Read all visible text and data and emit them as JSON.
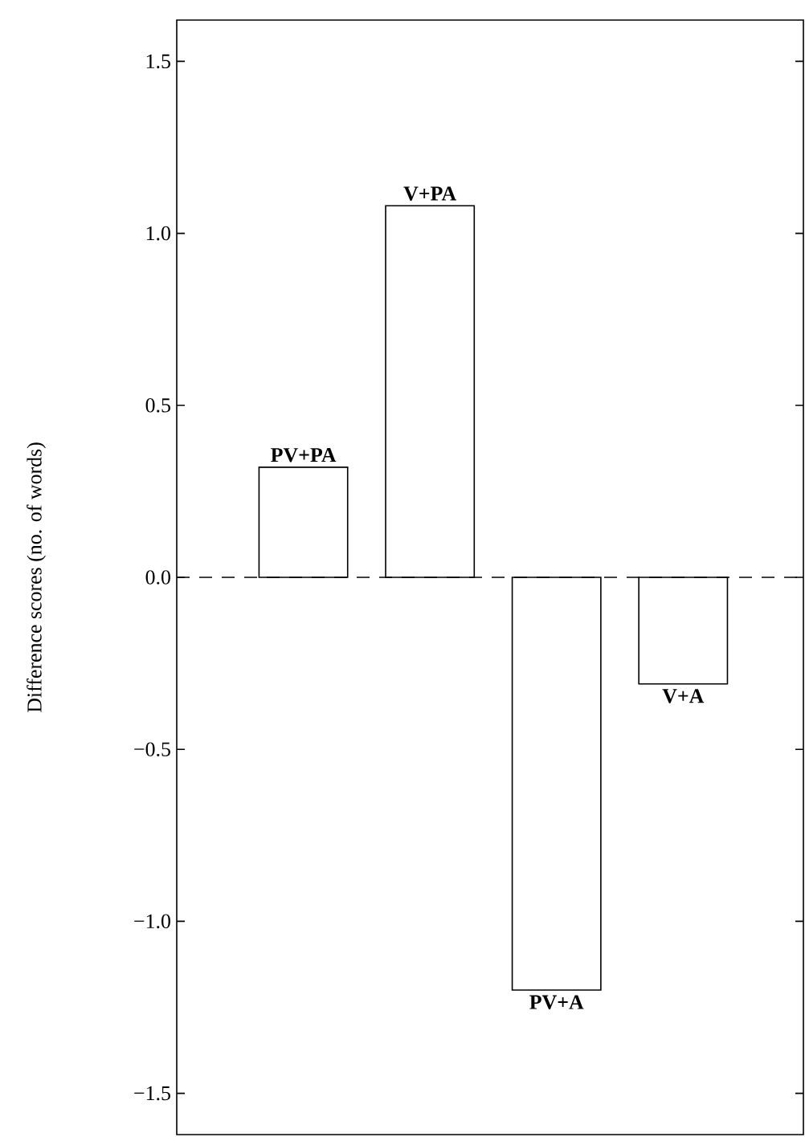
{
  "chart_data": {
    "type": "bar",
    "ylabel": "Difference scores (no. of words)",
    "categories": [
      "PV+PA",
      "V+PA",
      "PV+A",
      "V+A"
    ],
    "values": [
      0.32,
      1.08,
      -1.2,
      -0.31
    ],
    "color": "#ffffff",
    "ylim": [
      -1.62,
      1.62
    ],
    "yticks": [
      {
        "value": -1.5,
        "label": "−1.5"
      },
      {
        "value": -1.0,
        "label": "−1.0"
      },
      {
        "value": -0.5,
        "label": "−0.5"
      },
      {
        "value": 0.0,
        "label": "0.0"
      },
      {
        "value": 0.5,
        "label": "0.5"
      },
      {
        "value": 1.0,
        "label": "1.0"
      },
      {
        "value": 1.5,
        "label": "1.5"
      }
    ],
    "ref_lines": [
      {
        "axis": "y",
        "value": 0,
        "line_style": "dashed",
        "color": "#000000"
      }
    ],
    "grid": false
  }
}
